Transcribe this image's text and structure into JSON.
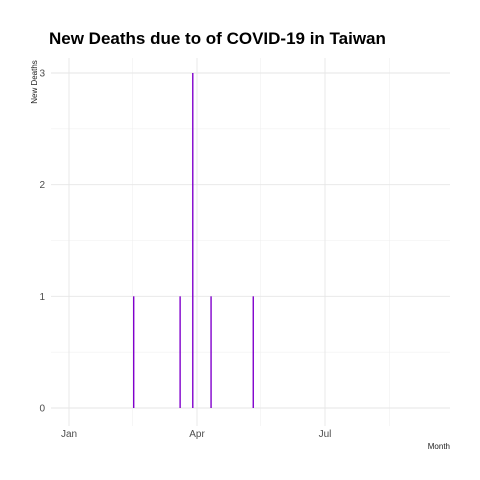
{
  "chart_data": {
    "type": "bar",
    "title": "New Deaths due to of COVID-19 in Taiwan",
    "xlabel": "Month",
    "ylabel": "New Deaths",
    "x_ticks": [
      "Jan",
      "Apr",
      "Jul"
    ],
    "y_ticks": [
      0,
      1,
      2,
      3
    ],
    "xlim": [
      "2020-01-01",
      "2020-10-01"
    ],
    "ylim": [
      0,
      3
    ],
    "grid": true,
    "bar_color": "#8000cc",
    "points": [
      {
        "date": "2020-02-16",
        "value": 1
      },
      {
        "date": "2020-03-20",
        "value": 1
      },
      {
        "date": "2020-03-29",
        "value": 3
      },
      {
        "date": "2020-04-11",
        "value": 1
      },
      {
        "date": "2020-05-11",
        "value": 1
      }
    ]
  }
}
